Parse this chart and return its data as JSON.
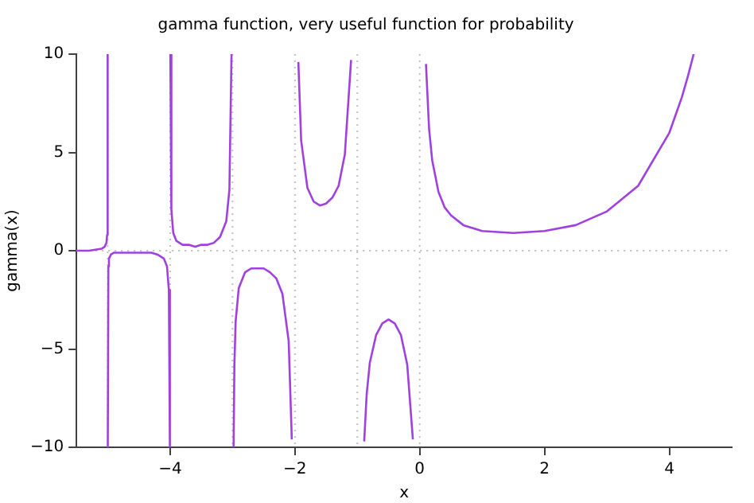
{
  "chart_data": {
    "type": "line",
    "title": "gamma function, very useful function for probability",
    "xlabel": "x",
    "ylabel": "gamma(x)",
    "series": [
      {
        "color": "#a040e0",
        "x": [
          -5.5,
          -5.3,
          -5.1,
          -5.05,
          -5.02,
          -5.01,
          -5.001
        ],
        "values": [
          0,
          0,
          0.1,
          0.2,
          0.4,
          0.8,
          10
        ]
      },
      {
        "color": "#a040e0",
        "x": [
          -4.999,
          -4.99,
          -4.98,
          -4.95,
          -4.9,
          -4.8,
          -4.7,
          -4.5,
          -4.3,
          -4.2,
          -4.1,
          -4.05,
          -4.02,
          -4.004
        ],
        "values": [
          -10,
          -0.8,
          -0.4,
          -0.2,
          -0.1,
          -0.1,
          -0.1,
          -0.1,
          -0.1,
          -0.2,
          -0.4,
          -0.8,
          -2,
          -10
        ]
      },
      {
        "color": "#a040e0",
        "x": [
          -3.996,
          -3.98,
          -3.95,
          -3.9,
          -3.8,
          -3.7,
          -3.6,
          -3.5,
          -3.4,
          -3.3,
          -3.2,
          -3.1,
          -3.05,
          -3.016
        ],
        "values": [
          10,
          2.1,
          0.9,
          0.5,
          0.3,
          0.3,
          0.2,
          0.3,
          0.3,
          0.4,
          0.7,
          1.5,
          3.1,
          10
        ]
      },
      {
        "color": "#a040e0",
        "x": [
          -2.983,
          -2.97,
          -2.95,
          -2.9,
          -2.8,
          -2.7,
          -2.6,
          -2.5,
          -2.4,
          -2.3,
          -2.2,
          -2.1,
          -2.05
        ],
        "values": [
          -10,
          -5.8,
          -3.6,
          -1.9,
          -1.1,
          -0.9,
          -0.9,
          -0.9,
          -1.1,
          -1.4,
          -2.2,
          -4.6,
          -9.6
        ]
      },
      {
        "color": "#a040e0",
        "x": [
          -1.945,
          -1.9,
          -1.8,
          -1.7,
          -1.6,
          -1.5,
          -1.4,
          -1.3,
          -1.2,
          -1.1
        ],
        "values": [
          9.6,
          5.6,
          3.2,
          2.5,
          2.3,
          2.4,
          2.7,
          3.3,
          4.9,
          9.7
        ]
      },
      {
        "color": "#a040e0",
        "x": [
          -0.89,
          -0.85,
          -0.8,
          -0.7,
          -0.6,
          -0.5,
          -0.4,
          -0.3,
          -0.2,
          -0.11
        ],
        "values": [
          -9.7,
          -7.3,
          -5.7,
          -4.3,
          -3.7,
          -3.5,
          -3.7,
          -4.3,
          -5.8,
          -9.6
        ]
      },
      {
        "color": "#a040e0",
        "x": [
          0.1,
          0.15,
          0.2,
          0.3,
          0.4,
          0.5,
          0.7,
          1,
          1.5,
          2,
          2.5,
          3,
          3.5,
          4,
          4.2,
          4.3,
          4.39
        ],
        "values": [
          9.5,
          6.2,
          4.6,
          3,
          2.2,
          1.8,
          1.3,
          1,
          0.9,
          1,
          1.3,
          2,
          3.3,
          6,
          7.8,
          8.9,
          10
        ]
      }
    ],
    "xlim": [
      -5.5,
      5
    ],
    "xticks": [
      -4,
      -2,
      0,
      2,
      4
    ],
    "ylim": [
      -10,
      10
    ],
    "yticks": [
      -10,
      -5,
      0,
      5,
      10
    ],
    "grid": false,
    "legend": false,
    "line_style": "solid",
    "marker": "none",
    "ref_lines": [
      {
        "axis": "x",
        "value": -5,
        "color": "#c0c0c0",
        "line_style": "dotted"
      },
      {
        "axis": "x",
        "value": -4,
        "color": "#c0c0c0",
        "line_style": "dotted"
      },
      {
        "axis": "x",
        "value": -3,
        "color": "#c0c0c0",
        "line_style": "dotted"
      },
      {
        "axis": "x",
        "value": -2,
        "color": "#c0c0c0",
        "line_style": "dotted"
      },
      {
        "axis": "x",
        "value": -1,
        "color": "#c0c0c0",
        "line_style": "dotted"
      },
      {
        "axis": "x",
        "value": 0,
        "color": "#c0c0c0",
        "line_style": "dotted"
      },
      {
        "axis": "y",
        "value": 0,
        "color": "#c0c0c0",
        "line_style": "dotted"
      }
    ]
  }
}
